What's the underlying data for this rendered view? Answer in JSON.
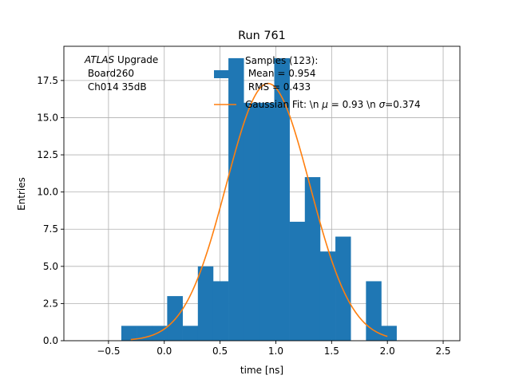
{
  "chart_data": {
    "type": "bar",
    "title": "Run 761",
    "xlabel": "time [ns]",
    "ylabel": "Entries",
    "xlim": [
      -0.9,
      2.65
    ],
    "ylim": [
      0,
      19.8
    ],
    "grid": true,
    "xticks": [
      -0.5,
      0.0,
      0.5,
      1.0,
      1.5,
      2.0,
      2.5
    ],
    "xtick_labels": [
      "−0.5",
      "0.0",
      "0.5",
      "1.0",
      "1.5",
      "2.0",
      "2.5"
    ],
    "yticks": [
      0.0,
      2.5,
      5.0,
      7.5,
      10.0,
      12.5,
      15.0,
      17.5
    ],
    "ytick_labels": [
      "0.0",
      "2.5",
      "5.0",
      "7.5",
      "10.0",
      "12.5",
      "15.0",
      "17.5"
    ],
    "bin_edges": [
      -0.385,
      -0.248,
      -0.111,
      0.026,
      0.164,
      0.301,
      0.438,
      0.575,
      0.712,
      0.849,
      0.986,
      1.123,
      1.26,
      1.397,
      1.534,
      1.671,
      1.808,
      1.945,
      2.082
    ],
    "counts": [
      1,
      1,
      1,
      3,
      1,
      5,
      4,
      19,
      16,
      16,
      19,
      8,
      11,
      6,
      7,
      0,
      4,
      1
    ],
    "bar_color": "#1f77b4",
    "fit": {
      "label": "Gaussian Fit: \\n $\\mu$ = 0.93 \\n $\\sigma$=0.374",
      "label_plain": "Gaussian Fit: \\n ",
      "label_mu": "μ",
      "label_mid": " = 0.93 \\n ",
      "label_sigma": "σ",
      "label_end": "=0.374",
      "mu": 0.93,
      "sigma": 0.374,
      "amplitude": 17.3,
      "x_range": [
        -0.3,
        2.0
      ],
      "color": "#ff7f0e"
    },
    "legend": {
      "placement": "top-right",
      "samples_title": "Samples (123):",
      "samples_mean": " Mean = 0.954",
      "samples_rms": " RMS = 0.433"
    },
    "annotation": {
      "line1_italic": "ATLAS",
      "line1_rest": " Upgrade",
      "line2": " Board260",
      "line3": " Ch014 35dB"
    }
  }
}
